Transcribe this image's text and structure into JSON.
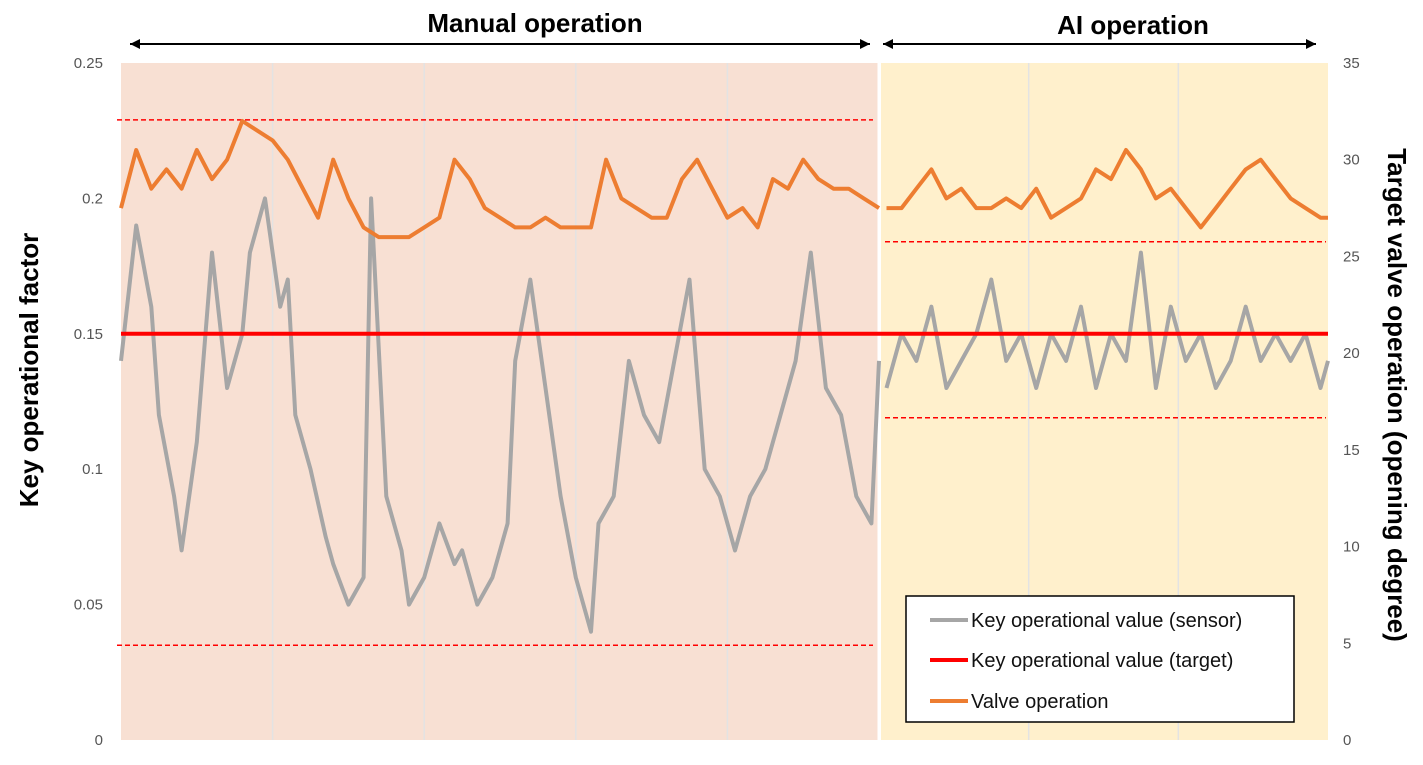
{
  "chart_data": {
    "type": "line",
    "sections": [
      {
        "label": "Manual operation",
        "x_range": [
          0,
          100
        ]
      },
      {
        "label": "AI operation",
        "x_range": [
          100,
          160
        ]
      }
    ],
    "ylabel": "Key operational factor",
    "y2label": "Target valve operation (opening degree)",
    "ylim": [
      0,
      0.25
    ],
    "y2lim": [
      0,
      35
    ],
    "yticks": [
      "0",
      "0.05",
      "0.1",
      "0.15",
      "0.2",
      "0.25"
    ],
    "y2ticks": [
      "0",
      "5",
      "10",
      "15",
      "20",
      "25",
      "30",
      "35"
    ],
    "xlim": [
      0,
      160
    ],
    "grid": true,
    "legend_position": "bottom-right",
    "bands": [
      {
        "section": "Manual operation",
        "upper": 0.229,
        "lower": 0.035
      },
      {
        "section": "AI operation",
        "upper": 0.184,
        "lower": 0.119
      }
    ],
    "series": [
      {
        "name": "Key operational value (sensor)",
        "axis": "left",
        "color": "#a6a6a6",
        "x": [
          0,
          2,
          4,
          5,
          7,
          8,
          10,
          12,
          14,
          16,
          17,
          19,
          21,
          22,
          23,
          25,
          27,
          28,
          30,
          32,
          33,
          35,
          37,
          38,
          40,
          42,
          44,
          45,
          47,
          49,
          51,
          52,
          54,
          56,
          58,
          60,
          62,
          63,
          65,
          67,
          69,
          71,
          73,
          75,
          77,
          79,
          81,
          83,
          85,
          87,
          89,
          91,
          93,
          95,
          97,
          99,
          100,
          101,
          103,
          105,
          107,
          109,
          111,
          113,
          115,
          117,
          119,
          121,
          123,
          125,
          127,
          129,
          131,
          133,
          135,
          137,
          139,
          141,
          143,
          145,
          147,
          149,
          151,
          153,
          155,
          157,
          159,
          160
        ],
        "y": [
          0.14,
          0.19,
          0.16,
          0.12,
          0.09,
          0.07,
          0.11,
          0.18,
          0.13,
          0.15,
          0.18,
          0.2,
          0.16,
          0.17,
          0.12,
          0.1,
          0.075,
          0.065,
          0.05,
          0.06,
          0.2,
          0.09,
          0.07,
          0.05,
          0.06,
          0.08,
          0.065,
          0.07,
          0.05,
          0.06,
          0.08,
          0.14,
          0.17,
          0.13,
          0.09,
          0.06,
          0.04,
          0.08,
          0.09,
          0.14,
          0.12,
          0.11,
          0.14,
          0.17,
          0.1,
          0.09,
          0.07,
          0.09,
          0.1,
          0.12,
          0.14,
          0.18,
          0.13,
          0.12,
          0.09,
          0.08,
          0.14,
          0.13,
          0.15,
          0.14,
          0.16,
          0.13,
          0.14,
          0.15,
          0.17,
          0.14,
          0.15,
          0.13,
          0.15,
          0.14,
          0.16,
          0.13,
          0.15,
          0.14,
          0.18,
          0.13,
          0.16,
          0.14,
          0.15,
          0.13,
          0.14,
          0.16,
          0.14,
          0.15,
          0.14,
          0.15,
          0.13,
          0.14
        ]
      },
      {
        "name": "Key operational value (target)",
        "axis": "left",
        "color": "#ff0000",
        "x": [
          0,
          160
        ],
        "y": [
          0.15,
          0.15
        ]
      },
      {
        "name": "Valve operation",
        "axis": "right",
        "color": "#ed7d31",
        "x": [
          0,
          2,
          4,
          6,
          8,
          10,
          12,
          14,
          16,
          18,
          20,
          22,
          24,
          26,
          28,
          30,
          32,
          34,
          36,
          38,
          40,
          42,
          44,
          46,
          48,
          50,
          52,
          54,
          56,
          58,
          60,
          62,
          64,
          66,
          68,
          70,
          72,
          74,
          76,
          78,
          80,
          82,
          84,
          86,
          88,
          90,
          92,
          94,
          96,
          98,
          100,
          101,
          103,
          105,
          107,
          109,
          111,
          113,
          115,
          117,
          119,
          121,
          123,
          125,
          127,
          129,
          131,
          133,
          135,
          137,
          139,
          141,
          143,
          145,
          147,
          149,
          151,
          153,
          155,
          157,
          159,
          160
        ],
        "y": [
          27.5,
          30.5,
          28.5,
          29.5,
          28.5,
          30.5,
          29.0,
          30.0,
          32.0,
          31.5,
          31.0,
          30.0,
          28.5,
          27.0,
          30.0,
          28.0,
          26.5,
          26.0,
          26.0,
          26.0,
          26.5,
          27.0,
          30.0,
          29.0,
          27.5,
          27.0,
          26.5,
          26.5,
          27.0,
          26.5,
          26.5,
          26.5,
          30.0,
          28.0,
          27.5,
          27.0,
          27.0,
          29.0,
          30.0,
          28.5,
          27.0,
          27.5,
          26.5,
          29.0,
          28.5,
          30.0,
          29.0,
          28.5,
          28.5,
          28.0,
          27.5,
          27.5,
          27.5,
          28.5,
          29.5,
          28.0,
          28.5,
          27.5,
          27.5,
          28.0,
          27.5,
          28.5,
          27.0,
          27.5,
          28.0,
          29.5,
          29.0,
          30.5,
          29.5,
          28.0,
          28.5,
          27.5,
          26.5,
          27.5,
          28.5,
          29.5,
          30.0,
          29.0,
          28.0,
          27.5,
          27.0,
          27.0
        ]
      }
    ]
  }
}
